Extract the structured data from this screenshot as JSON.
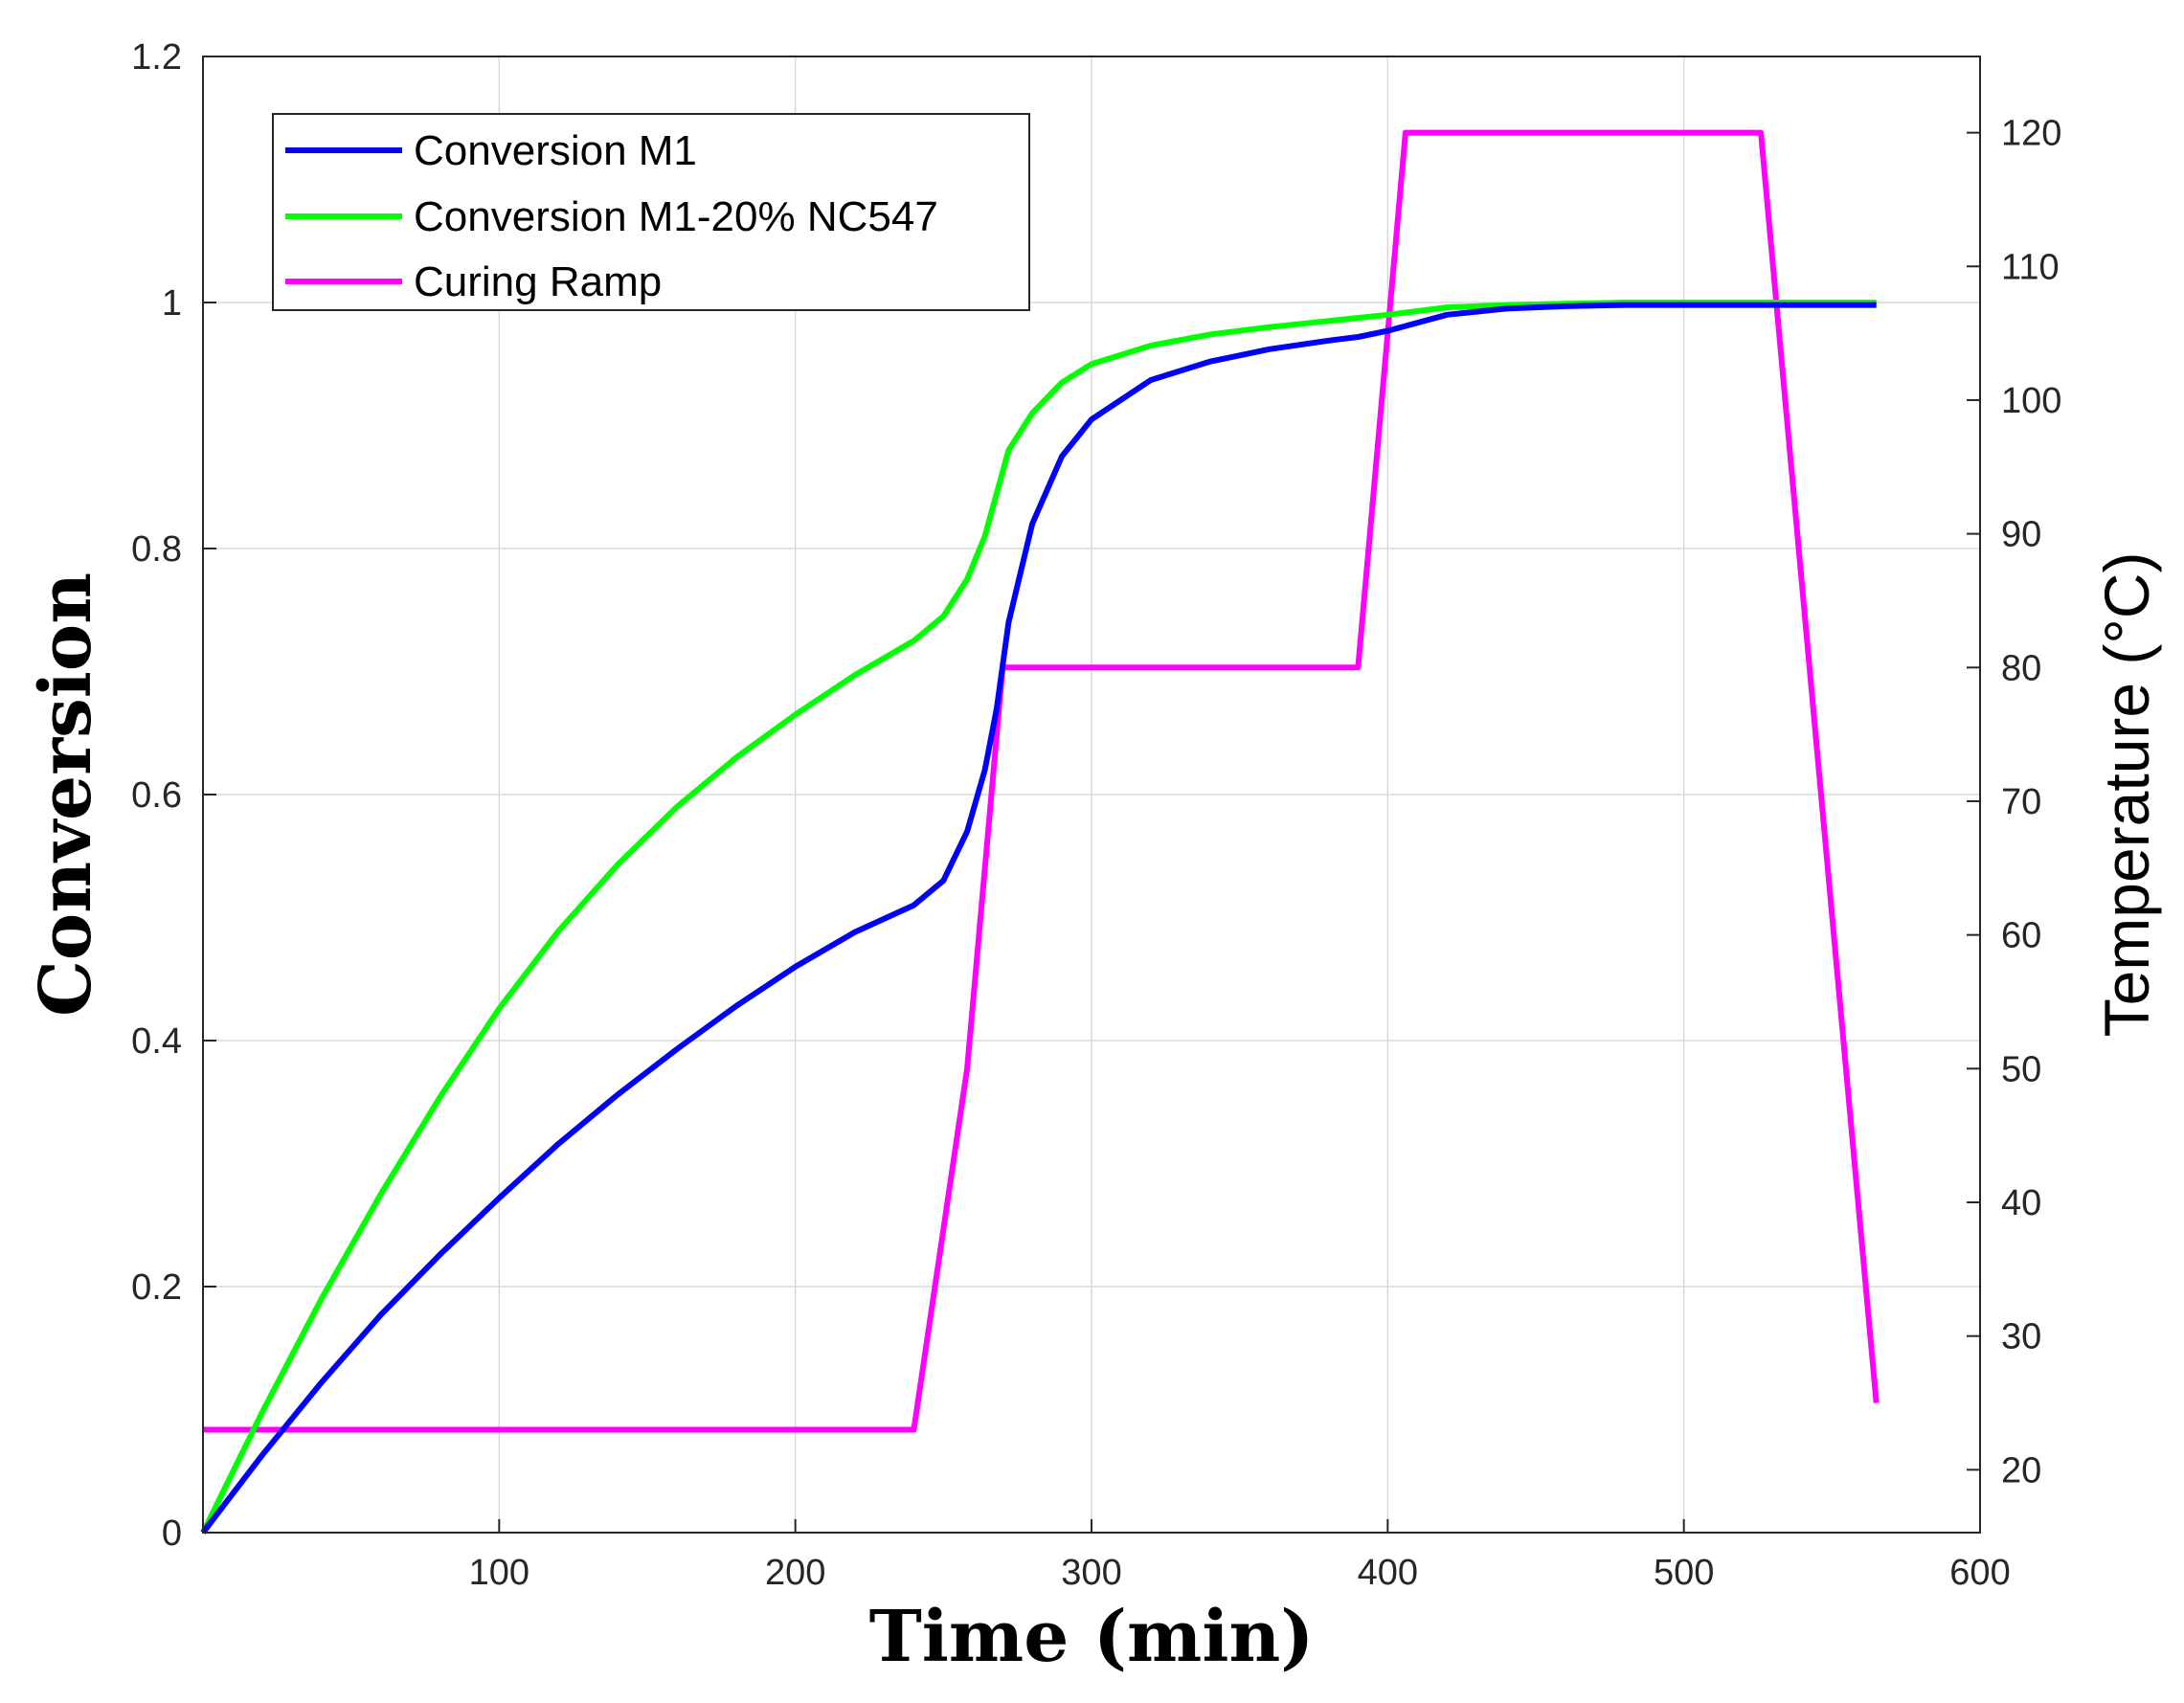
{
  "chart_data": {
    "type": "line",
    "title": "",
    "xlabel": "Time (min)",
    "ylabel": "Conversion",
    "y2label": "Temperature (°C)",
    "xlim": [
      0,
      600
    ],
    "ylim": [
      0,
      1.2
    ],
    "y2lim": [
      15.3,
      125.7
    ],
    "grid": true,
    "legend_position": "top-left",
    "xticks": [
      100,
      200,
      300,
      400,
      500,
      600
    ],
    "yticks": [
      0,
      0.2,
      0.4,
      0.6,
      0.8,
      1,
      1.2
    ],
    "y2ticks": [
      20,
      30,
      40,
      50,
      60,
      70,
      80,
      90,
      100,
      110,
      120
    ],
    "series": [
      {
        "name": "Conversion M1",
        "axis": "left",
        "color": "#0000ff",
        "x": [
          0,
          20,
          40,
          60,
          80,
          100,
          120,
          140,
          160,
          180,
          200,
          220,
          240,
          250,
          258,
          264,
          268,
          272,
          280,
          290,
          300,
          320,
          340,
          360,
          380,
          390,
          400,
          420,
          440,
          460,
          480,
          500,
          520,
          540,
          565
        ],
        "y": [
          0,
          0.063,
          0.122,
          0.177,
          0.226,
          0.272,
          0.316,
          0.356,
          0.393,
          0.428,
          0.46,
          0.488,
          0.51,
          0.53,
          0.57,
          0.62,
          0.67,
          0.74,
          0.82,
          0.875,
          0.905,
          0.937,
          0.952,
          0.962,
          0.969,
          0.972,
          0.977,
          0.99,
          0.995,
          0.997,
          0.998,
          0.998,
          0.998,
          0.998,
          0.998
        ]
      },
      {
        "name": "Conversion M1-20% NC547",
        "axis": "left",
        "color": "#00ff00",
        "x": [
          0,
          20,
          40,
          60,
          80,
          100,
          120,
          140,
          160,
          180,
          200,
          220,
          240,
          250,
          258,
          264,
          268,
          272,
          280,
          290,
          300,
          320,
          340,
          360,
          380,
          400,
          420,
          440,
          460,
          480,
          500,
          520,
          540,
          565
        ],
        "y": [
          0,
          0.098,
          0.19,
          0.275,
          0.354,
          0.426,
          0.489,
          0.543,
          0.59,
          0.63,
          0.665,
          0.697,
          0.725,
          0.745,
          0.775,
          0.81,
          0.845,
          0.88,
          0.91,
          0.935,
          0.95,
          0.965,
          0.974,
          0.98,
          0.985,
          0.99,
          0.996,
          0.998,
          0.999,
          1.0,
          1.0,
          1.0,
          1.0,
          1.0
        ]
      },
      {
        "name": "Curing Ramp",
        "axis": "right",
        "color": "#ff00ff",
        "x": [
          0,
          240,
          258,
          270,
          390,
          406,
          526,
          565
        ],
        "y": [
          23,
          23,
          50,
          80,
          80,
          120,
          120,
          25
        ]
      }
    ]
  }
}
